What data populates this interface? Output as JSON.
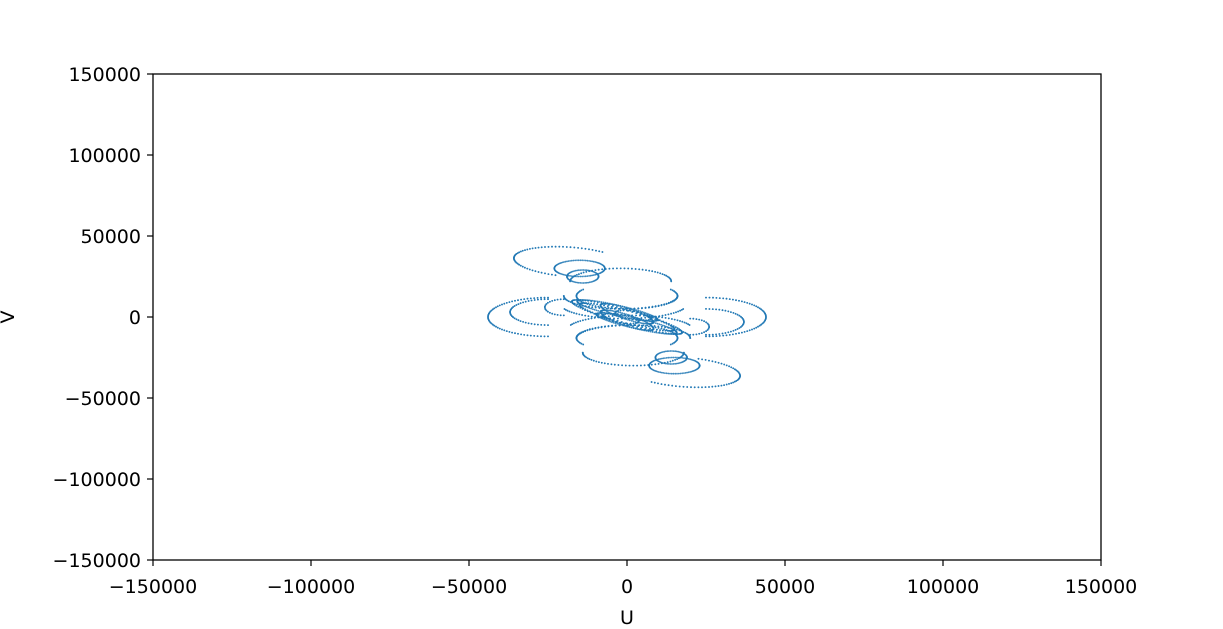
{
  "chart_data": {
    "type": "scatter",
    "title": "",
    "xlabel": "U",
    "ylabel": "V",
    "xlim": [
      -150000,
      150000
    ],
    "ylim": [
      -150000,
      150000
    ],
    "xticks": [
      -150000,
      -100000,
      -50000,
      0,
      50000,
      100000,
      150000
    ],
    "yticks": [
      -150000,
      -100000,
      -50000,
      0,
      50000,
      100000,
      150000
    ],
    "xtick_labels": [
      "−150000",
      "−100000",
      "−50000",
      "0",
      "50000",
      "100000",
      "150000"
    ],
    "ytick_labels": [
      "−150000",
      "−100000",
      "−50000",
      "0",
      "50000",
      "100000",
      "150000"
    ],
    "grid": false,
    "marker_color": "#1f77b4",
    "tracks": [
      {
        "center": [
          0,
          0
        ],
        "radius_u": 17000,
        "radius_v": 3500,
        "tilt_deg": -28,
        "from_deg": 0,
        "to_deg": 360
      },
      {
        "center": [
          0,
          0
        ],
        "radius_u": 20000,
        "radius_v": 4000,
        "tilt_deg": -30,
        "from_deg": 0,
        "to_deg": 360
      },
      {
        "center": [
          -3000,
          4000
        ],
        "radius_u": 14000,
        "radius_v": 3000,
        "tilt_deg": -25,
        "from_deg": 0,
        "to_deg": 360
      },
      {
        "center": [
          3000,
          -4000
        ],
        "radius_u": 14000,
        "radius_v": 3000,
        "tilt_deg": -25,
        "from_deg": 0,
        "to_deg": 360
      },
      {
        "center": [
          0,
          2000
        ],
        "radius_u": 10000,
        "radius_v": 3000,
        "tilt_deg": -35,
        "from_deg": 0,
        "to_deg": 360
      },
      {
        "center": [
          0,
          -2000
        ],
        "radius_u": 10000,
        "radius_v": 3000,
        "tilt_deg": -35,
        "from_deg": 0,
        "to_deg": 360
      },
      {
        "center": [
          2000,
          1000
        ],
        "radius_u": 6000,
        "radius_v": 2500,
        "tilt_deg": -20,
        "from_deg": 0,
        "to_deg": 360
      },
      {
        "center": [
          -2000,
          -1000
        ],
        "radius_u": 6000,
        "radius_v": 2500,
        "tilt_deg": -20,
        "from_deg": 0,
        "to_deg": 360
      },
      {
        "center": [
          -2000,
          13000
        ],
        "radius_u": 18000,
        "radius_v": 8000,
        "tilt_deg": 0,
        "from_deg": 180,
        "to_deg": 360
      },
      {
        "center": [
          2000,
          -13000
        ],
        "radius_u": 18000,
        "radius_v": 8000,
        "tilt_deg": 0,
        "from_deg": 0,
        "to_deg": 180
      },
      {
        "center": [
          0,
          13000
        ],
        "radius_u": 16000,
        "radius_v": 8000,
        "tilt_deg": 0,
        "from_deg": 150,
        "to_deg": 390
      },
      {
        "center": [
          0,
          -13000
        ],
        "radius_u": 16000,
        "radius_v": 8000,
        "tilt_deg": 0,
        "from_deg": -30,
        "to_deg": 210
      },
      {
        "center": [
          -1000,
          8000
        ],
        "radius_u": 20000,
        "radius_v": 9000,
        "tilt_deg": 0,
        "from_deg": 200,
        "to_deg": 340
      },
      {
        "center": [
          1000,
          -8000
        ],
        "radius_u": 20000,
        "radius_v": 9000,
        "tilt_deg": 0,
        "from_deg": 20,
        "to_deg": 160
      },
      {
        "center": [
          -2000,
          22000
        ],
        "radius_u": 16000,
        "radius_v": 8000,
        "tilt_deg": 0,
        "from_deg": 0,
        "to_deg": 180
      },
      {
        "center": [
          2000,
          -22000
        ],
        "radius_u": 16000,
        "radius_v": 8000,
        "tilt_deg": 0,
        "from_deg": 180,
        "to_deg": 360
      },
      {
        "center": [
          -15000,
          30000
        ],
        "radius_u": 8000,
        "radius_v": 5000,
        "tilt_deg": 0,
        "from_deg": 0,
        "to_deg": 360
      },
      {
        "center": [
          15000,
          -30000
        ],
        "radius_u": 8000,
        "radius_v": 5000,
        "tilt_deg": 0,
        "from_deg": 0,
        "to_deg": 360
      },
      {
        "center": [
          -14000,
          25000
        ],
        "radius_u": 5000,
        "radius_v": 4000,
        "tilt_deg": 0,
        "from_deg": 0,
        "to_deg": 360
      },
      {
        "center": [
          14000,
          -25000
        ],
        "radius_u": 5000,
        "radius_v": 4000,
        "tilt_deg": 0,
        "from_deg": 0,
        "to_deg": 360
      },
      {
        "center": [
          -18000,
          34000
        ],
        "radius_u": 18000,
        "radius_v": 9000,
        "tilt_deg": -10,
        "from_deg": 60,
        "to_deg": 260
      },
      {
        "center": [
          18000,
          -34000
        ],
        "radius_u": 18000,
        "radius_v": 9000,
        "tilt_deg": -10,
        "from_deg": 240,
        "to_deg": 440
      },
      {
        "center": [
          -25000,
          0
        ],
        "radius_u": 19000,
        "radius_v": 12000,
        "tilt_deg": 0,
        "from_deg": 90,
        "to_deg": 270
      },
      {
        "center": [
          25000,
          0
        ],
        "radius_u": 19000,
        "radius_v": 12000,
        "tilt_deg": 0,
        "from_deg": -90,
        "to_deg": 90
      },
      {
        "center": [
          -25000,
          3000
        ],
        "radius_u": 12000,
        "radius_v": 8000,
        "tilt_deg": 0,
        "from_deg": 90,
        "to_deg": 270
      },
      {
        "center": [
          25000,
          -3000
        ],
        "radius_u": 12000,
        "radius_v": 8000,
        "tilt_deg": 0,
        "from_deg": -90,
        "to_deg": 90
      },
      {
        "center": [
          -20000,
          6000
        ],
        "radius_u": 6000,
        "radius_v": 5000,
        "tilt_deg": 0,
        "from_deg": 90,
        "to_deg": 270
      },
      {
        "center": [
          20000,
          -6000
        ],
        "radius_u": 6000,
        "radius_v": 5000,
        "tilt_deg": 0,
        "from_deg": -90,
        "to_deg": 90
      }
    ]
  }
}
